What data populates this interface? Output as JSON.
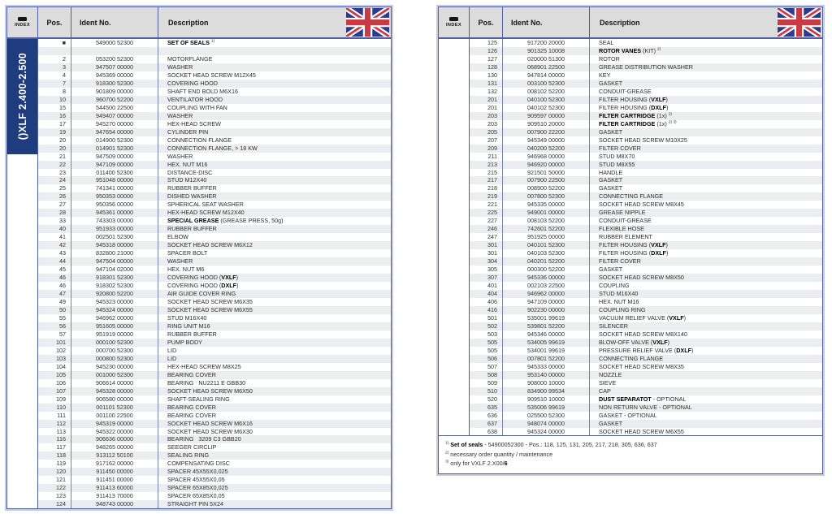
{
  "header": {
    "index_label": "INDEX",
    "pos": "Pos.",
    "ident": "Ident No.",
    "description": "Description",
    "flag": "uk-flag"
  },
  "colors": {
    "border": "#4e5f9e",
    "header_bg": "#dcdcdc",
    "stripe": "#ebedf0",
    "bar_bg": "#1e3c7e",
    "flag_blue": "#2d3a8f",
    "flag_red": "#c93a45"
  },
  "tables": {
    "left": {
      "model_label": "()XLF 2.400-2.500",
      "rows": [
        [
          "■",
          "549000 52300",
          "**SET OF SEALS** ^1)^"
        ],
        [
          "",
          "",
          ""
        ],
        [
          "2",
          "053200 52300",
          "MOTORFLANGE"
        ],
        [
          "3",
          "947507 00000",
          "WASHER"
        ],
        [
          "4",
          "945369 00000",
          "SOCKET HEAD SCREW M12X45"
        ],
        [
          "7",
          "918300 52300",
          "COVERING HOOD"
        ],
        [
          "8",
          "901809 00000",
          "SHAFT END BOLD M6X16"
        ],
        [
          "10",
          "960700 52200",
          "VENTILATOR HOOD"
        ],
        [
          "15",
          "544500 22500",
          "COUPLING WITH FAN"
        ],
        [
          "16",
          "949407 00000",
          "WASHER"
        ],
        [
          "17",
          "945270 00000",
          "HEX-HEAD SCREW"
        ],
        [
          "19",
          "947654 00000",
          "CYLINDER PIN"
        ],
        [
          "20",
          "014900 52300",
          "CONNECTION FLANGE"
        ],
        [
          "20",
          "014901 52300",
          "CONNECTION FLANGE, > 18 KW"
        ],
        [
          "21",
          "947509 00000",
          "WASHER"
        ],
        [
          "22",
          "947109 00000",
          "HEX. NUT M16"
        ],
        [
          "23",
          "011400 52300",
          "DISTANCE-DISC"
        ],
        [
          "24",
          "951048 00000",
          "STUD M12X40"
        ],
        [
          "25",
          "741341 00000",
          "RUBBER BUFFER"
        ],
        [
          "26",
          "950353 00000",
          "DISHED WASHER"
        ],
        [
          "27",
          "950356 00000",
          "SPHERICAL SEAT WASHER"
        ],
        [
          "28",
          "945361 00000",
          "HEX-HEAD SCREW M12X40"
        ],
        [
          "33",
          "743303 00000",
          "**SPECIAL GREASE** (GREASE PRESS, 50g)"
        ],
        [
          "40",
          "951933 00000",
          "RUBBER BUFFER"
        ],
        [
          "41",
          "002501 52300",
          "ELBOW"
        ],
        [
          "42",
          "945318 00000",
          "SOCKET HEAD SCREW M6X12"
        ],
        [
          "43",
          "832800 21000",
          "SPACER BOLT"
        ],
        [
          "44",
          "947504 00000",
          "WASHER"
        ],
        [
          "45",
          "947104 02000",
          "HEX. NUT M6"
        ],
        [
          "46",
          "918301 52300",
          "COVERING HOOD (**VXLF**)"
        ],
        [
          "46",
          "918302 52300",
          "COVERING HOOD (**DXLF**)"
        ],
        [
          "47",
          "920800 52200",
          "AIR GUIDE COVER RING"
        ],
        [
          "49",
          "945323 00000",
          "SOCKET HEAD SCREW M6X35"
        ],
        [
          "50",
          "945324 00000",
          "SOCKET HEAD SCREW M6X55"
        ],
        [
          "55",
          "946962 00000",
          "STUD M16X40"
        ],
        [
          "56",
          "951605 00000",
          "RING UNIT M16"
        ],
        [
          "57",
          "951919 00000",
          "RUBBER BUFFER"
        ],
        [
          "101",
          "000100 52300",
          "PUMP BODY"
        ],
        [
          "102",
          "000700 52300",
          "LID"
        ],
        [
          "103",
          "000800 52300",
          "LID"
        ],
        [
          "104",
          "945230 00000",
          "HEX-HEAD SCREW M8X25"
        ],
        [
          "105",
          "001000 52300",
          "BEARING COVER"
        ],
        [
          "106",
          "906614 00000",
          "BEARING   NU2211 E GBB30"
        ],
        [
          "107",
          "945328 00000",
          "SOCKET HEAD SCREW M6X50"
        ],
        [
          "109",
          "906580 00000",
          "SHAFT-SEALING RING"
        ],
        [
          "110",
          "001101 52300",
          "BEARING COVER"
        ],
        [
          "111",
          "001100 22500",
          "BEARING COVER"
        ],
        [
          "112",
          "945319 00000",
          "SOCKET HEAD SCREW M6X16"
        ],
        [
          "113",
          "945322 00000",
          "SOCKET HEAD SCREW M6X30"
        ],
        [
          "116",
          "906636 00000",
          "BEARING   3209 C3 GBB20"
        ],
        [
          "117",
          "948265 00000",
          "SEEGER CIRCLIP"
        ],
        [
          "118",
          "913112 50100",
          "SEALING RING"
        ],
        [
          "119",
          "917162 00000",
          "COMPENSATING DISC"
        ],
        [
          "120",
          "911450 00000",
          "SPACER 45X55X0,025"
        ],
        [
          "121",
          "911451 00000",
          "SPACER 45X55X0,05"
        ],
        [
          "122",
          "911413 60000",
          "SPACER 65X85X0,025"
        ],
        [
          "123",
          "911413 70000",
          "SPACER 65X85X0,05"
        ],
        [
          "124",
          "948743 00000",
          "STRAIGHT PIN 5X24"
        ]
      ]
    },
    "right": {
      "rows": [
        [
          "125",
          "917200 20000",
          "SEAL"
        ],
        [
          "126",
          "901325 10008",
          "**ROTOR VANES** (KIT) ^2)^"
        ],
        [
          "127",
          "020000 51300",
          "ROTOR"
        ],
        [
          "128",
          "068901 22500",
          "GREASE DISTRIBUTION WASHER"
        ],
        [
          "130",
          "947814 00000",
          "KEY"
        ],
        [
          "131",
          "003100 52300",
          "GASKET"
        ],
        [
          "132",
          "008102 52200",
          "CONDUIT-GREASE"
        ],
        [
          "201",
          "040100 52300",
          "FILTER HOUSING (**VXLF**)"
        ],
        [
          "201",
          "040102 52300",
          "FILTER HOUSING (**DXLF**)"
        ],
        [
          "203",
          "909597 00000",
          "**FILTER CARTRIDGE** (1x) ^2)^"
        ],
        [
          "203",
          "909510 20000",
          "**FILTER CARTRIDGE** (1x) ^2) 3)^"
        ],
        [
          "205",
          "007900 22200",
          "GASKET"
        ],
        [
          "207",
          "945349 00000",
          "SOCKET HEAD SCREW M10X25"
        ],
        [
          "209",
          "040200 52200",
          "FILTER COVER"
        ],
        [
          "211",
          "946968 00000",
          "STUD M8X70"
        ],
        [
          "213",
          "946920 00000",
          "STUD M8X55"
        ],
        [
          "215",
          "921501 50000",
          "HANDLE"
        ],
        [
          "217",
          "007900 22500",
          "GASKET"
        ],
        [
          "218",
          "008900 52200",
          "GASKET"
        ],
        [
          "219",
          "007800 52300",
          "CONNECTING FLANGE"
        ],
        [
          "221",
          "945335 00000",
          "SOCKET HEAD SCREW M8X45"
        ],
        [
          "225",
          "949001 00000",
          "GREASE NIPPLE"
        ],
        [
          "227",
          "008103 52200",
          "CONDUIT-GREASE"
        ],
        [
          "246",
          "742601 52200",
          "FLEXIBLE HOSE"
        ],
        [
          "247",
          "951925 00000",
          "RUBBER ELEMENT"
        ],
        [
          "301",
          "040101 52300",
          "FILTER HOUSING (**VXLF**)"
        ],
        [
          "301",
          "040103 52300",
          "FILTER HOUSING (**DXLF**)"
        ],
        [
          "304",
          "040201 52200",
          "FILTER COVER"
        ],
        [
          "305",
          "000300 52200",
          "GASKET"
        ],
        [
          "307",
          "945336 00000",
          "SOCKET HEAD SCREW M8X50"
        ],
        [
          "401",
          "002103 22500",
          "COUPLING"
        ],
        [
          "404",
          "946962 00000",
          "STUD M16X40"
        ],
        [
          "406",
          "947109 00000",
          "HEX. NUT M16"
        ],
        [
          "416",
          "902230 00000",
          "COUPLING RING"
        ],
        [
          "501",
          "535001 99619",
          "VACUUM RELIEF VALVE (**VXLF**)"
        ],
        [
          "502",
          "539801 52200",
          "SILENCER"
        ],
        [
          "503",
          "945346 00000",
          "SOCKET HEAD SCREW M8X140"
        ],
        [
          "505",
          "534005 99619",
          "BLOW-OFF VALVE (**VXLF**)"
        ],
        [
          "505",
          "534001 99619",
          "PRESSURE RELIEF VALVE (**DXLF**)"
        ],
        [
          "506",
          "007801 52200",
          "CONNECTING FLANGE"
        ],
        [
          "507",
          "945333 00000",
          "SOCKET HEAD SCREW M8X35"
        ],
        [
          "508",
          "953140 00000",
          "NOZZLE"
        ],
        [
          "509",
          "908000 10000",
          "SIEVE"
        ],
        [
          "510",
          "834900 99534",
          "CAP"
        ],
        [
          "520",
          "909510 10000",
          "**DUST SEPARATOT** - OPTIONAL"
        ],
        [
          "635",
          "535006 99619",
          "NON RETURN VALVE - OPTIONAL"
        ],
        [
          "636",
          "025500 52300",
          "GASKET - OPTIONAL"
        ],
        [
          "637",
          "948074 00000",
          "GASKET"
        ],
        [
          "638",
          "945324 00000",
          "SOCKET HEAD SCREW M6X55"
        ]
      ],
      "footnotes": [
        "^1)^ **Set of seals** - 54900052300 - Pos.: 118, 125, 131, 205, 217, 218, 305, 636, 637",
        "^2)^ necessary order quantity / maintenance",
        "^3)^ only for VXLF 2.X00/**6**"
      ]
    }
  }
}
